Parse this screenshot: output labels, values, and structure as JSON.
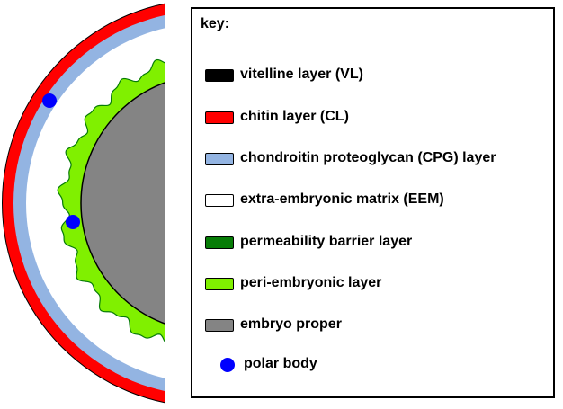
{
  "key": {
    "title": "key:",
    "items": [
      {
        "label": "vitelline layer (VL)",
        "color": "#000000",
        "kind": "swatch"
      },
      {
        "label": "chitin layer (CL)",
        "color": "#ff0000",
        "kind": "swatch"
      },
      {
        "label": "chondroitin proteoglycan (CPG) layer",
        "color": "#93b4e2",
        "kind": "swatch"
      },
      {
        "label": "extra-embryonic matrix (EEM)",
        "color": "#ffffff",
        "kind": "swatch"
      },
      {
        "label": "permeability barrier layer",
        "color": "#067c06",
        "kind": "swatch"
      },
      {
        "label": "peri-embryonic layer",
        "color": "#80f000",
        "kind": "swatch"
      },
      {
        "label": "embryo proper",
        "color": "#848484",
        "kind": "swatch"
      },
      {
        "label": "polar body",
        "color": "#0000ff",
        "kind": "dot"
      }
    ]
  }
}
